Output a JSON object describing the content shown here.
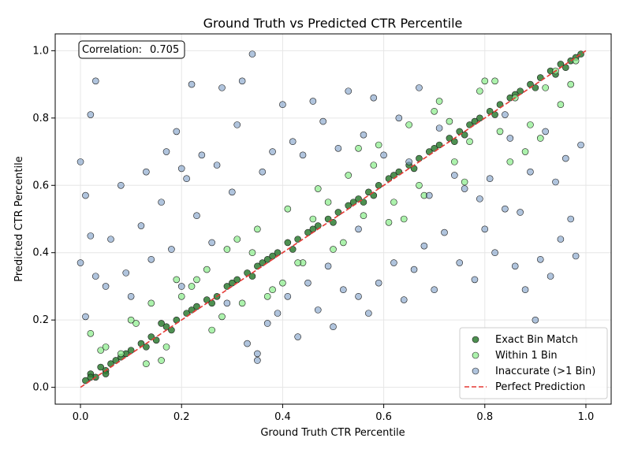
{
  "chart_data": {
    "type": "scatter",
    "title": "Ground Truth vs Predicted CTR Percentile",
    "xlabel": "Ground Truth CTR Percentile",
    "ylabel": "Predicted CTR Percentile",
    "xlim": [
      -0.05,
      1.05
    ],
    "ylim": [
      -0.05,
      1.05
    ],
    "xticks": [
      0.0,
      0.2,
      0.4,
      0.6,
      0.8,
      1.0
    ],
    "yticks": [
      0.0,
      0.2,
      0.4,
      0.6,
      0.8,
      1.0
    ],
    "tick_labels": [
      "0.0",
      "0.2",
      "0.4",
      "0.6",
      "0.8",
      "1.0"
    ],
    "grid": true,
    "legend_position": "lower-right",
    "annotation": {
      "label": "Correlation:",
      "value": "0.705",
      "position": "top-left"
    },
    "colors": {
      "exact": "#2e7d32",
      "within": "#90ee90",
      "inaccurate": "#7b9cc6",
      "perfect": "#e53935",
      "edge": "#1a1a1a"
    },
    "series": [
      {
        "name": "Exact Bin Match",
        "kind": "points",
        "x": [
          0.01,
          0.02,
          0.03,
          0.04,
          0.05,
          0.06,
          0.07,
          0.08,
          0.1,
          0.12,
          0.14,
          0.15,
          0.17,
          0.19,
          0.21,
          0.23,
          0.25,
          0.27,
          0.29,
          0.31,
          0.33,
          0.35,
          0.37,
          0.39,
          0.41,
          0.43,
          0.45,
          0.47,
          0.49,
          0.51,
          0.53,
          0.55,
          0.57,
          0.59,
          0.61,
          0.63,
          0.65,
          0.67,
          0.69,
          0.71,
          0.73,
          0.75,
          0.77,
          0.79,
          0.81,
          0.83,
          0.85,
          0.87,
          0.89,
          0.91,
          0.93,
          0.95,
          0.97,
          0.99,
          0.02,
          0.05,
          0.09,
          0.13,
          0.18,
          0.22,
          0.26,
          0.3,
          0.34,
          0.38,
          0.42,
          0.46,
          0.5,
          0.54,
          0.58,
          0.62,
          0.66,
          0.7,
          0.74,
          0.78,
          0.82,
          0.86,
          0.9,
          0.94,
          0.98,
          0.16,
          0.36,
          0.56,
          0.76,
          0.96
        ],
        "y": [
          0.02,
          0.04,
          0.03,
          0.06,
          0.05,
          0.07,
          0.08,
          0.09,
          0.11,
          0.13,
          0.15,
          0.14,
          0.18,
          0.2,
          0.22,
          0.24,
          0.26,
          0.27,
          0.3,
          0.32,
          0.34,
          0.36,
          0.38,
          0.4,
          0.43,
          0.44,
          0.46,
          0.48,
          0.5,
          0.52,
          0.54,
          0.56,
          0.58,
          0.6,
          0.62,
          0.64,
          0.66,
          0.68,
          0.7,
          0.72,
          0.74,
          0.76,
          0.78,
          0.8,
          0.82,
          0.84,
          0.86,
          0.88,
          0.9,
          0.92,
          0.94,
          0.96,
          0.97,
          0.99,
          0.03,
          0.04,
          0.1,
          0.12,
          0.17,
          0.23,
          0.25,
          0.31,
          0.33,
          0.39,
          0.41,
          0.47,
          0.49,
          0.55,
          0.57,
          0.63,
          0.65,
          0.71,
          0.73,
          0.79,
          0.81,
          0.87,
          0.89,
          0.93,
          0.98,
          0.19,
          0.37,
          0.55,
          0.75,
          0.95
        ]
      },
      {
        "name": "Within 1 Bin",
        "kind": "points",
        "x": [
          0.02,
          0.05,
          0.08,
          0.11,
          0.14,
          0.17,
          0.2,
          0.23,
          0.26,
          0.29,
          0.32,
          0.35,
          0.38,
          0.41,
          0.44,
          0.47,
          0.5,
          0.53,
          0.56,
          0.59,
          0.62,
          0.65,
          0.68,
          0.71,
          0.74,
          0.77,
          0.8,
          0.83,
          0.86,
          0.89,
          0.92,
          0.95,
          0.98,
          0.04,
          0.1,
          0.16,
          0.22,
          0.28,
          0.34,
          0.4,
          0.46,
          0.52,
          0.58,
          0.64,
          0.7,
          0.76,
          0.82,
          0.88,
          0.94,
          0.13,
          0.25,
          0.37,
          0.49,
          0.61,
          0.73,
          0.85,
          0.97,
          0.19,
          0.31,
          0.43,
          0.55,
          0.67,
          0.79,
          0.91
        ],
        "y": [
          0.16,
          0.12,
          0.1,
          0.19,
          0.25,
          0.12,
          0.27,
          0.32,
          0.17,
          0.41,
          0.25,
          0.47,
          0.29,
          0.53,
          0.37,
          0.59,
          0.41,
          0.63,
          0.51,
          0.72,
          0.55,
          0.78,
          0.57,
          0.85,
          0.67,
          0.73,
          0.91,
          0.76,
          0.86,
          0.78,
          0.89,
          0.84,
          0.97,
          0.11,
          0.2,
          0.08,
          0.3,
          0.21,
          0.4,
          0.31,
          0.5,
          0.43,
          0.66,
          0.5,
          0.82,
          0.61,
          0.91,
          0.7,
          0.94,
          0.07,
          0.35,
          0.27,
          0.55,
          0.49,
          0.79,
          0.67,
          0.9,
          0.32,
          0.44,
          0.37,
          0.71,
          0.6,
          0.88,
          0.74
        ]
      },
      {
        "name": "Inaccurate (>1 Bin)",
        "kind": "points",
        "x": [
          0.0,
          0.0,
          0.01,
          0.01,
          0.02,
          0.02,
          0.03,
          0.05,
          0.06,
          0.08,
          0.09,
          0.1,
          0.12,
          0.13,
          0.14,
          0.16,
          0.17,
          0.18,
          0.19,
          0.2,
          0.21,
          0.22,
          0.23,
          0.24,
          0.26,
          0.27,
          0.28,
          0.29,
          0.3,
          0.31,
          0.32,
          0.33,
          0.34,
          0.35,
          0.36,
          0.37,
          0.38,
          0.39,
          0.4,
          0.41,
          0.42,
          0.43,
          0.44,
          0.45,
          0.46,
          0.47,
          0.48,
          0.49,
          0.5,
          0.51,
          0.52,
          0.53,
          0.55,
          0.56,
          0.57,
          0.58,
          0.59,
          0.6,
          0.62,
          0.63,
          0.64,
          0.65,
          0.66,
          0.67,
          0.68,
          0.69,
          0.7,
          0.71,
          0.72,
          0.74,
          0.75,
          0.76,
          0.78,
          0.79,
          0.8,
          0.81,
          0.82,
          0.84,
          0.85,
          0.86,
          0.87,
          0.88,
          0.89,
          0.9,
          0.91,
          0.92,
          0.93,
          0.94,
          0.95,
          0.96,
          0.97,
          0.98,
          0.99,
          0.35,
          0.2,
          0.03,
          0.55,
          0.84
        ],
        "y": [
          0.67,
          0.37,
          0.57,
          0.21,
          0.81,
          0.45,
          0.91,
          0.3,
          0.44,
          0.6,
          0.34,
          0.27,
          0.48,
          0.64,
          0.38,
          0.55,
          0.7,
          0.41,
          0.76,
          0.3,
          0.62,
          0.9,
          0.51,
          0.69,
          0.43,
          0.66,
          0.89,
          0.25,
          0.58,
          0.78,
          0.91,
          0.13,
          0.99,
          0.1,
          0.64,
          0.19,
          0.7,
          0.22,
          0.84,
          0.27,
          0.73,
          0.15,
          0.69,
          0.31,
          0.85,
          0.23,
          0.79,
          0.36,
          0.18,
          0.71,
          0.29,
          0.88,
          0.27,
          0.75,
          0.22,
          0.86,
          0.31,
          0.69,
          0.37,
          0.8,
          0.26,
          0.67,
          0.35,
          0.89,
          0.42,
          0.57,
          0.29,
          0.77,
          0.46,
          0.63,
          0.37,
          0.59,
          0.32,
          0.56,
          0.47,
          0.62,
          0.4,
          0.53,
          0.74,
          0.36,
          0.52,
          0.29,
          0.64,
          0.2,
          0.38,
          0.76,
          0.33,
          0.61,
          0.44,
          0.68,
          0.5,
          0.39,
          0.72,
          0.08,
          0.65,
          0.33,
          0.47,
          0.81
        ]
      },
      {
        "name": "Perfect Prediction",
        "kind": "line",
        "x": [
          0.0,
          1.0
        ],
        "y": [
          0.0,
          1.0
        ]
      }
    ]
  }
}
